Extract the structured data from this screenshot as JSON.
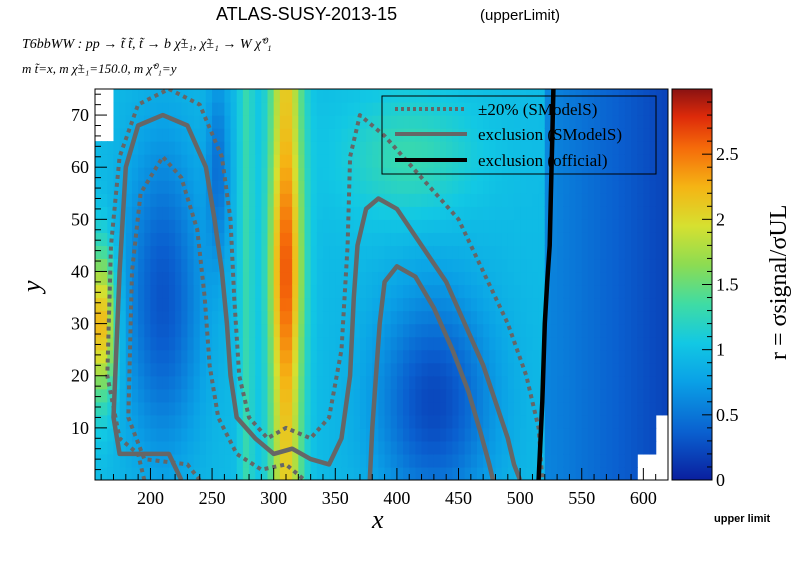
{
  "header": {
    "title": "ATLAS-SUSY-2013-15",
    "title_note": "(upperLimit)",
    "process": "T6bbWW : pp → t̃ t̃, t̃ → b χ̃±₁, χ̃±₁ → W χ̃⁰₁",
    "masses": "m t̃=x, m χ̃±₁=150.0, m χ̃⁰₁=y"
  },
  "footer_label": "upper limit",
  "chart_data": {
    "type": "heatmap",
    "xlabel": "x",
    "ylabel": "y",
    "zlabel": "r = σsignal/σUL",
    "xlim": [
      155,
      620
    ],
    "ylim": [
      0,
      75
    ],
    "zlim": [
      0,
      3
    ],
    "xticks": [
      200,
      250,
      300,
      350,
      400,
      450,
      500,
      550,
      600
    ],
    "yticks": [
      10,
      20,
      30,
      40,
      50,
      60,
      70
    ],
    "zticks": [
      0,
      0.5,
      1,
      1.5,
      2,
      2.5
    ],
    "ztick_labels": [
      "0",
      "0.5",
      "1",
      "1.5",
      "2",
      "2.5"
    ],
    "legend_position": "top-right",
    "legend": [
      {
        "label": "±20% (SModelS)",
        "style": "dotted",
        "color": "#666666"
      },
      {
        "label": "exclusion (SModelS)",
        "style": "solid",
        "color": "#666666"
      },
      {
        "label": "exclusion (official)",
        "style": "solid",
        "color": "#000000"
      }
    ],
    "official_exclusion": [
      [
        515,
        0
      ],
      [
        518,
        15
      ],
      [
        520,
        30
      ],
      [
        522,
        38
      ],
      [
        524,
        45
      ],
      [
        525,
        55
      ],
      [
        526,
        65
      ],
      [
        527,
        75
      ]
    ],
    "smodels_exclusion": [
      [
        [
          225,
          0
        ],
        [
          215,
          5
        ],
        [
          175,
          5
        ],
        [
          170,
          12
        ],
        [
          175,
          40
        ],
        [
          180,
          60
        ],
        [
          190,
          68
        ],
        [
          210,
          70
        ],
        [
          230,
          68
        ],
        [
          245,
          60
        ],
        [
          252,
          50
        ],
        [
          258,
          40
        ],
        [
          262,
          30
        ],
        [
          265,
          20
        ],
        [
          270,
          12
        ],
        [
          285,
          8
        ],
        [
          300,
          5
        ],
        [
          315,
          6
        ],
        [
          330,
          4
        ],
        [
          345,
          3
        ],
        [
          355,
          8
        ],
        [
          362,
          20
        ],
        [
          365,
          35
        ],
        [
          368,
          45
        ],
        [
          375,
          52
        ],
        [
          385,
          54
        ],
        [
          400,
          52
        ],
        [
          420,
          45
        ],
        [
          440,
          38
        ],
        [
          455,
          30
        ],
        [
          470,
          22
        ],
        [
          480,
          15
        ],
        [
          490,
          8
        ],
        [
          495,
          3
        ],
        [
          500,
          0
        ]
      ],
      [
        [
          378,
          0
        ],
        [
          380,
          10
        ],
        [
          383,
          20
        ],
        [
          386,
          30
        ],
        [
          390,
          38
        ],
        [
          400,
          41
        ],
        [
          415,
          39
        ],
        [
          430,
          33
        ],
        [
          445,
          25
        ],
        [
          458,
          17
        ],
        [
          468,
          9
        ],
        [
          475,
          3
        ],
        [
          478,
          0
        ]
      ]
    ],
    "smodels_band": [
      [
        [
          195,
          0
        ],
        [
          190,
          5
        ],
        [
          175,
          8
        ],
        [
          165,
          20
        ],
        [
          168,
          45
        ],
        [
          175,
          62
        ],
        [
          190,
          72
        ],
        [
          215,
          75
        ],
        [
          240,
          72
        ],
        [
          258,
          62
        ],
        [
          265,
          50
        ],
        [
          268,
          35
        ],
        [
          272,
          20
        ],
        [
          280,
          12
        ],
        [
          295,
          8
        ],
        [
          310,
          10
        ],
        [
          330,
          8
        ],
        [
          345,
          12
        ],
        [
          355,
          25
        ],
        [
          360,
          45
        ],
        [
          362,
          62
        ],
        [
          370,
          70
        ],
        [
          390,
          66
        ],
        [
          420,
          58
        ],
        [
          450,
          50
        ],
        [
          470,
          40
        ],
        [
          490,
          30
        ],
        [
          505,
          20
        ],
        [
          515,
          10
        ],
        [
          518,
          0
        ]
      ],
      [
        [
          240,
          0
        ],
        [
          230,
          3
        ],
        [
          195,
          4
        ],
        [
          182,
          12
        ],
        [
          185,
          40
        ],
        [
          192,
          55
        ],
        [
          210,
          62
        ],
        [
          225,
          58
        ],
        [
          238,
          48
        ],
        [
          244,
          35
        ],
        [
          248,
          22
        ],
        [
          255,
          12
        ],
        [
          270,
          5
        ],
        [
          290,
          2
        ],
        [
          310,
          3
        ],
        [
          325,
          0
        ]
      ]
    ]
  }
}
